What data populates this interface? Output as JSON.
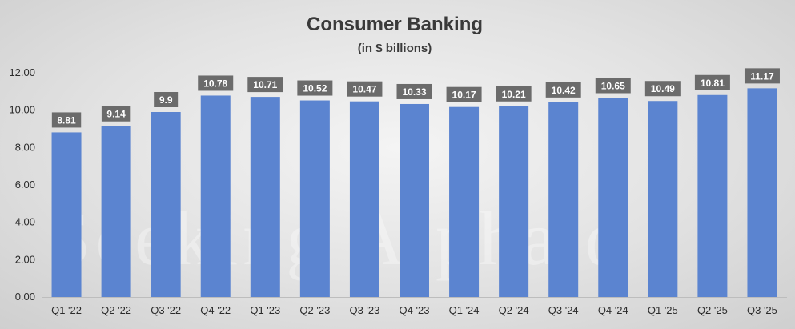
{
  "colors": {
    "bar": "#5b84d0",
    "label_bg": "#6b6b6b",
    "label_text": "#ffffff",
    "axis": "#bdbdbd"
  },
  "watermark": "Seeking Alpha α",
  "chart_data": {
    "type": "bar",
    "title": "Consumer Banking",
    "subtitle": "(in $ billions)",
    "categories": [
      "Q1 '22",
      "Q2 '22",
      "Q3 '22",
      "Q4 '22",
      "Q1 '23",
      "Q2 '23",
      "Q3 '23",
      "Q4 '23",
      "Q1 '24",
      "Q2 '24",
      "Q3 '24",
      "Q4 '24",
      "Q1 '25",
      "Q2 '25",
      "Q3 '25"
    ],
    "values": [
      8.81,
      9.14,
      9.9,
      10.78,
      10.71,
      10.52,
      10.47,
      10.33,
      10.17,
      10.21,
      10.42,
      10.65,
      10.49,
      10.81,
      11.17
    ],
    "value_labels": [
      "8.81",
      "9.14",
      "9.9",
      "10.78",
      "10.71",
      "10.52",
      "10.47",
      "10.33",
      "10.17",
      "10.21",
      "10.42",
      "10.65",
      "10.49",
      "10.81",
      "11.17"
    ],
    "yticks": [
      "0.00",
      "2.00",
      "4.00",
      "6.00",
      "8.00",
      "10.00",
      "12.00"
    ],
    "ylim": [
      0,
      12
    ],
    "grid": false,
    "legend": "none"
  }
}
